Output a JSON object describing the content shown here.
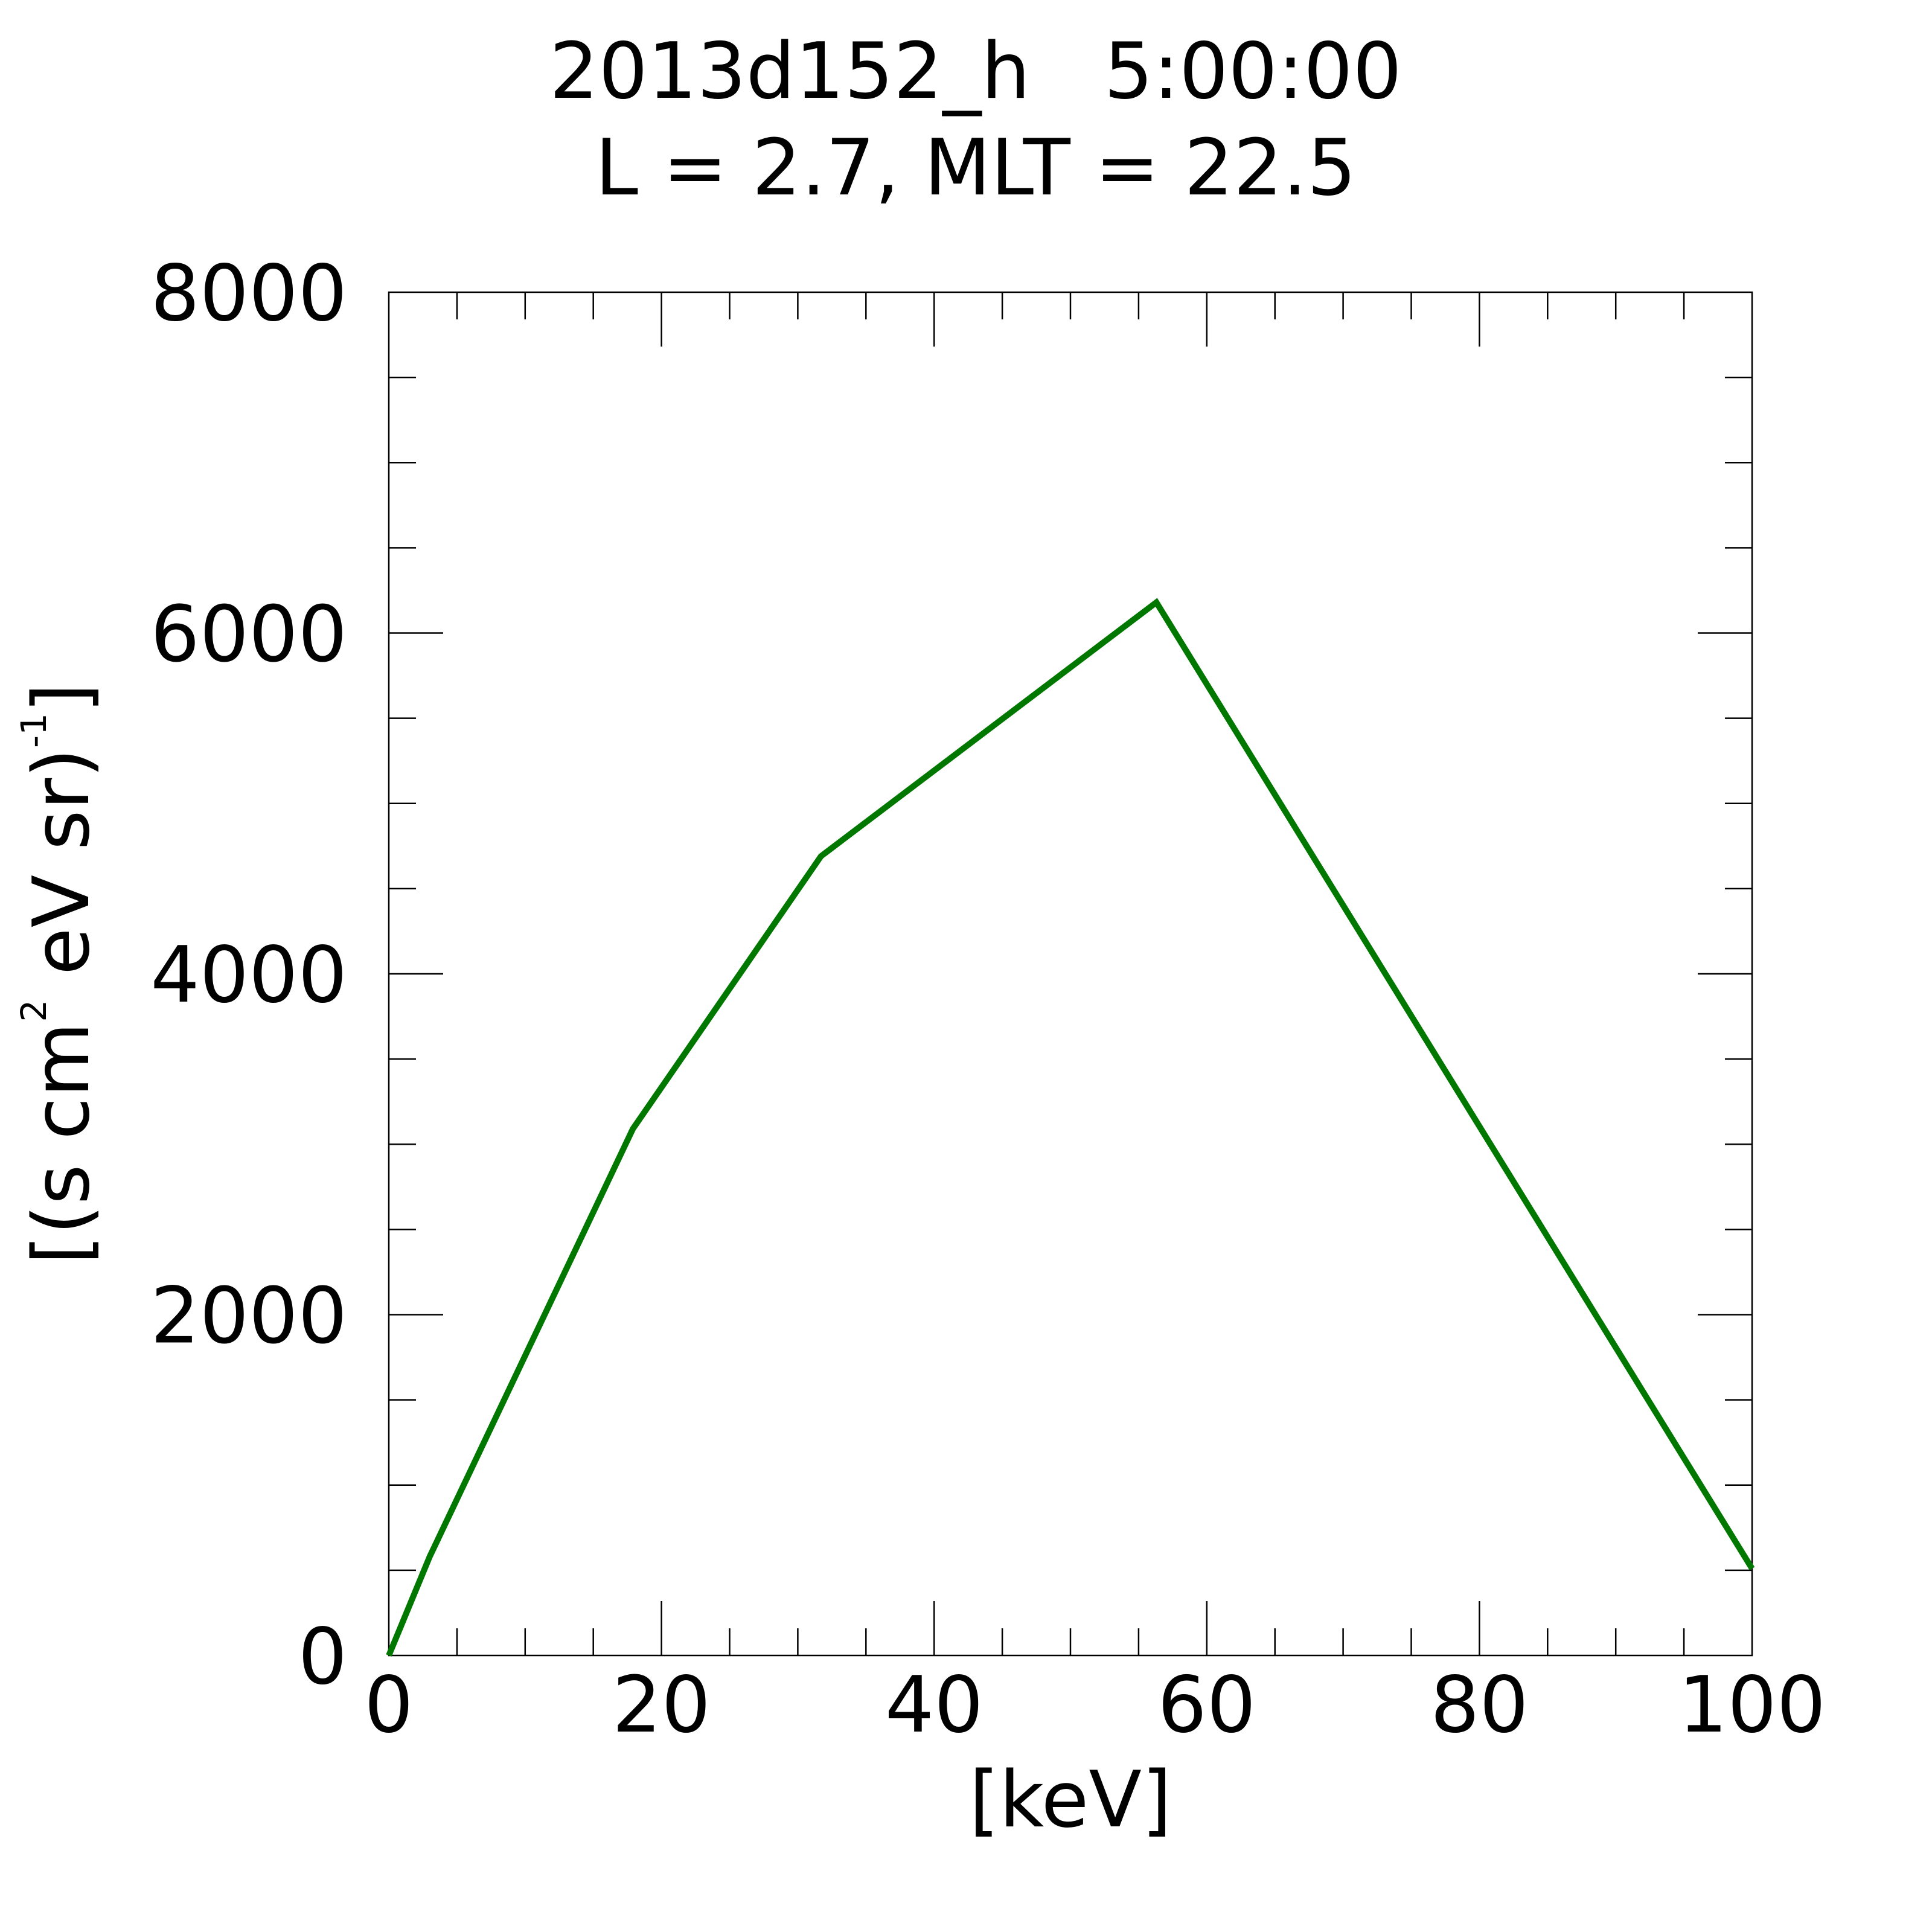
{
  "chart_data": {
    "type": "line",
    "title_line1": "2013d152_h   5:00:00",
    "title_line2": "L = 2.7, MLT = 22.5",
    "xlabel": "[keV]",
    "ylabel": {
      "part1": "[(s cm",
      "sup1": "2",
      "part2": " eV sr)",
      "sup2": "-1",
      "part3": "]"
    },
    "xlim": [
      0,
      100
    ],
    "ylim": [
      0,
      8000
    ],
    "x_major_ticks": [
      0,
      20,
      40,
      60,
      80,
      100
    ],
    "x_tick_labels": [
      "0",
      "20",
      "40",
      "60",
      "80",
      "100"
    ],
    "x_minor_step": 5,
    "y_major_ticks": [
      0,
      2000,
      4000,
      6000,
      8000
    ],
    "y_tick_labels": [
      "0",
      "2000",
      "4000",
      "6000",
      "8000"
    ],
    "y_minor_step": 500,
    "grid": false,
    "series": [
      {
        "color": "#007800",
        "x": [
          0,
          3,
          17.9,
          31.7,
          56.3,
          100
        ],
        "y": [
          0,
          580,
          3090,
          4690,
          6180,
          510
        ]
      }
    ]
  }
}
